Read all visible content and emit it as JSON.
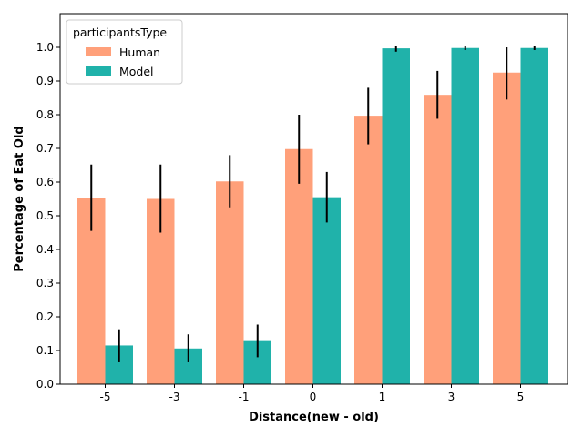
{
  "chart_data": {
    "type": "bar",
    "categories": [
      "-5",
      "-3",
      "-1",
      "0",
      "1",
      "3",
      "5"
    ],
    "series": [
      {
        "name": "Human",
        "color": "#ffa07a",
        "values": [
          0.553,
          0.55,
          0.602,
          0.698,
          0.797,
          0.859,
          0.925
        ],
        "err_low": [
          0.455,
          0.45,
          0.525,
          0.595,
          0.712,
          0.788,
          0.845
        ],
        "err_high": [
          0.652,
          0.652,
          0.68,
          0.8,
          0.88,
          0.93,
          1.0
        ]
      },
      {
        "name": "Model",
        "color": "#20b2aa",
        "values": [
          0.115,
          0.106,
          0.128,
          0.555,
          0.997,
          0.998,
          0.998
        ],
        "err_low": [
          0.065,
          0.065,
          0.08,
          0.48,
          0.987,
          0.992,
          0.992
        ],
        "err_high": [
          0.163,
          0.148,
          0.177,
          0.63,
          1.005,
          1.003,
          1.003
        ]
      }
    ],
    "xlabel": "Distance(new - old)",
    "ylabel": "Percentage of Eat Old",
    "ylim": [
      0,
      1.1
    ],
    "yticks": [
      "0.0",
      "0.1",
      "0.2",
      "0.3",
      "0.4",
      "0.5",
      "0.6",
      "0.7",
      "0.8",
      "0.9",
      "1.0"
    ],
    "legend": {
      "title": "participantsType",
      "position": "top-left"
    },
    "grid": false
  }
}
